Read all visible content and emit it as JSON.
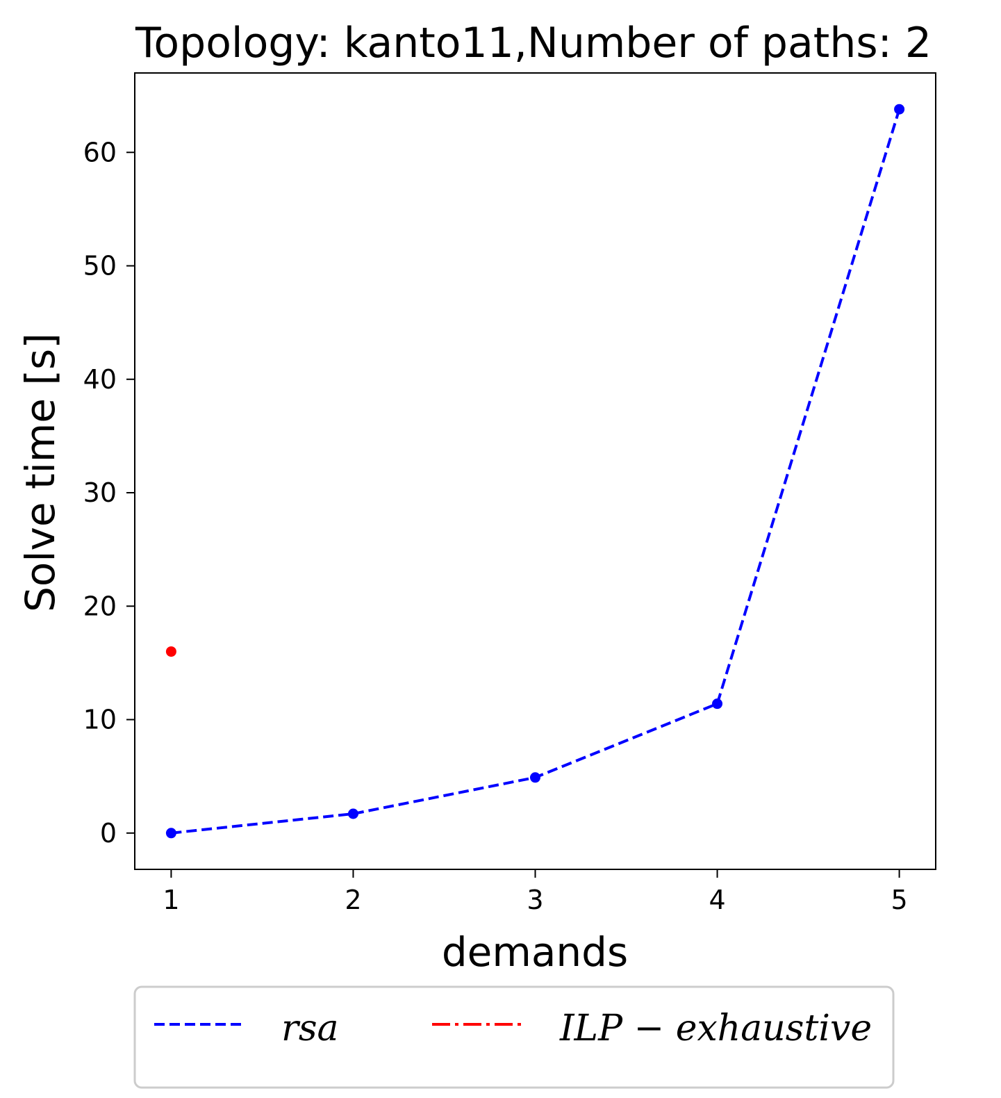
{
  "chart_data": {
    "type": "line",
    "title": "Topology: kanto11,Number of paths: 2",
    "xlabel": "demands",
    "ylabel": "Solve time [s]",
    "x_ticks": [
      "1",
      "2",
      "3",
      "4",
      "5"
    ],
    "y_ticks": [
      "0",
      "10",
      "20",
      "30",
      "40",
      "50",
      "60"
    ],
    "xlim": [
      0.8,
      5.2
    ],
    "ylim": [
      -3.2,
      67
    ],
    "legend_position": "bottom-center",
    "series": [
      {
        "name": "rsa",
        "legend_label": "rsa",
        "color": "#0000ff",
        "line_style": "dashed",
        "x": [
          1,
          2,
          3,
          4,
          5
        ],
        "y": [
          0.0,
          1.7,
          4.9,
          11.4,
          63.8
        ]
      },
      {
        "name": "ILP-exhaustive",
        "legend_label": "ILP − exhaustive",
        "color": "#ff0000",
        "line_style": "dashdot",
        "x": [
          1
        ],
        "y": [
          16.0
        ]
      }
    ]
  }
}
